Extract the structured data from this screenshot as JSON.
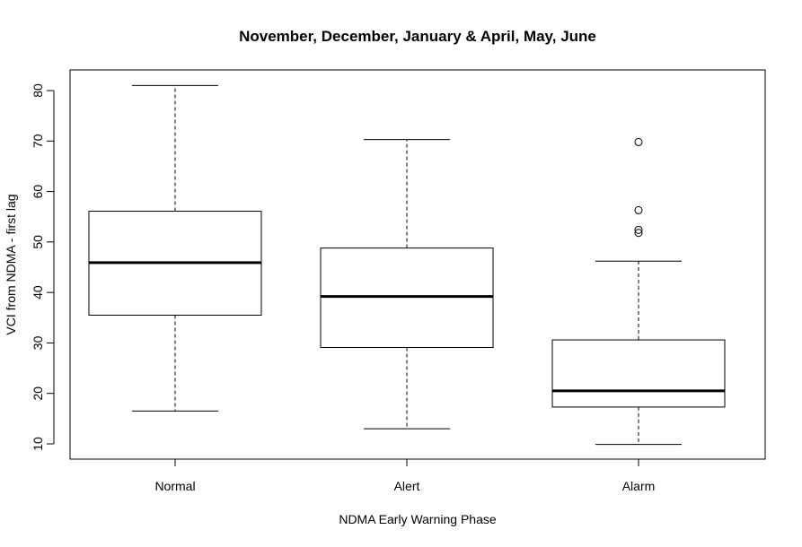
{
  "chart_data": {
    "type": "boxplot",
    "title": "November, December, January & April, May, June",
    "xlabel": "NDMA Early Warning Phase",
    "ylabel": "VCI from NDMA - first lag",
    "ylim": [
      7,
      84
    ],
    "yticks": [
      10,
      20,
      30,
      40,
      50,
      60,
      70,
      80
    ],
    "grid": false,
    "categories": [
      "Normal",
      "Alert",
      "Alarm"
    ],
    "boxes": [
      {
        "category": "Normal",
        "whisker_low": 16.5,
        "q1": 35.5,
        "median": 45.9,
        "q3": 56.1,
        "whisker_high": 81.0,
        "outliers": []
      },
      {
        "category": "Alert",
        "whisker_low": 13.0,
        "q1": 29.1,
        "median": 39.2,
        "q3": 48.8,
        "whisker_high": 70.3,
        "outliers": []
      },
      {
        "category": "Alarm",
        "whisker_low": 9.9,
        "q1": 17.3,
        "median": 20.5,
        "q3": 30.6,
        "whisker_high": 46.2,
        "outliers": [
          51.8,
          52.4,
          56.3,
          69.8
        ]
      }
    ]
  }
}
